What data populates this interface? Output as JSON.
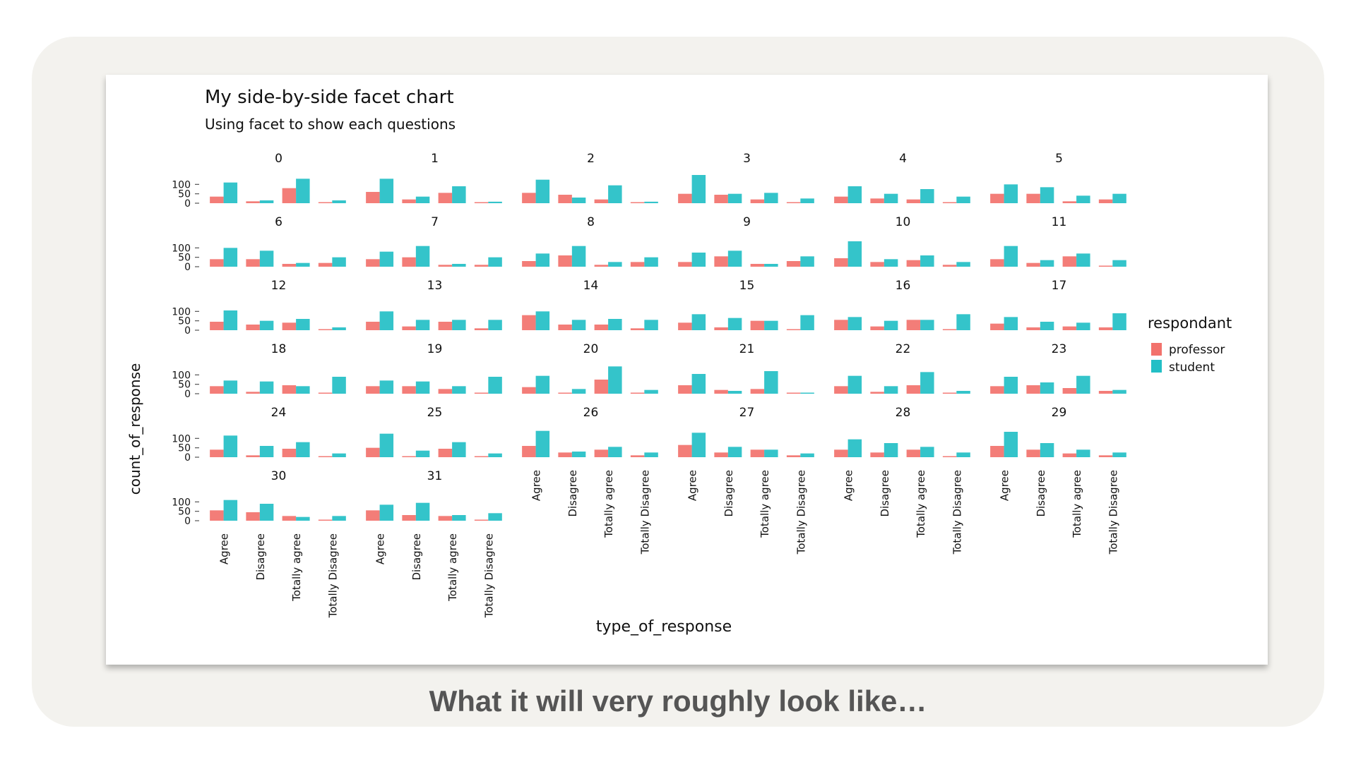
{
  "caption": "What it will very roughly look like…",
  "colors": {
    "professor": "#f2726c",
    "student": "#23bfc6"
  },
  "chart_data": {
    "type": "bar",
    "title": "My side-by-side facet chart",
    "subtitle": "Using facet to show each questions",
    "xlabel": "type_of_response",
    "ylabel": "count_of_response",
    "categories": [
      "Agree",
      "Disagree",
      "Totally agree",
      "Totally Disagree"
    ],
    "yticks": [
      0,
      50,
      100
    ],
    "ylim": [
      0,
      150
    ],
    "facet_columns": 6,
    "legend": {
      "title": "respondant",
      "entries": [
        "professor",
        "student"
      ],
      "position": "right"
    },
    "facets": [
      {
        "label": "0",
        "professor": [
          35,
          10,
          80,
          2
        ],
        "student": [
          110,
          15,
          130,
          15
        ]
      },
      {
        "label": "1",
        "professor": [
          60,
          20,
          55,
          5
        ],
        "student": [
          130,
          35,
          90,
          8
        ]
      },
      {
        "label": "2",
        "professor": [
          55,
          45,
          20,
          3
        ],
        "student": [
          125,
          30,
          95,
          8
        ]
      },
      {
        "label": "3",
        "professor": [
          50,
          45,
          20,
          5
        ],
        "student": [
          150,
          50,
          55,
          25
        ]
      },
      {
        "label": "4",
        "professor": [
          35,
          25,
          20,
          5
        ],
        "student": [
          90,
          50,
          75,
          35
        ]
      },
      {
        "label": "5",
        "professor": [
          50,
          50,
          10,
          20
        ],
        "student": [
          100,
          85,
          40,
          50
        ]
      },
      {
        "label": "6",
        "professor": [
          40,
          40,
          15,
          20
        ],
        "student": [
          100,
          85,
          20,
          50
        ]
      },
      {
        "label": "7",
        "professor": [
          40,
          50,
          10,
          10
        ],
        "student": [
          80,
          110,
          15,
          50
        ]
      },
      {
        "label": "8",
        "professor": [
          30,
          60,
          10,
          25
        ],
        "student": [
          70,
          110,
          25,
          50
        ]
      },
      {
        "label": "9",
        "professor": [
          25,
          55,
          15,
          30
        ],
        "student": [
          75,
          85,
          15,
          55
        ]
      },
      {
        "label": "10",
        "professor": [
          45,
          25,
          35,
          10
        ],
        "student": [
          135,
          40,
          60,
          25
        ]
      },
      {
        "label": "11",
        "professor": [
          40,
          20,
          55,
          5
        ],
        "student": [
          110,
          35,
          70,
          35
        ]
      },
      {
        "label": "12",
        "professor": [
          45,
          30,
          40,
          5
        ],
        "student": [
          105,
          50,
          60,
          15
        ]
      },
      {
        "label": "13",
        "professor": [
          45,
          20,
          45,
          10
        ],
        "student": [
          100,
          55,
          55,
          55
        ]
      },
      {
        "label": "14",
        "professor": [
          80,
          30,
          30,
          10
        ],
        "student": [
          100,
          55,
          60,
          55
        ]
      },
      {
        "label": "15",
        "professor": [
          40,
          15,
          50,
          5
        ],
        "student": [
          85,
          65,
          50,
          80
        ]
      },
      {
        "label": "16",
        "professor": [
          55,
          20,
          55,
          5
        ],
        "student": [
          70,
          50,
          55,
          85
        ]
      },
      {
        "label": "17",
        "professor": [
          35,
          15,
          20,
          15
        ],
        "student": [
          70,
          45,
          40,
          90
        ]
      },
      {
        "label": "18",
        "professor": [
          40,
          10,
          45,
          5
        ],
        "student": [
          70,
          65,
          40,
          90
        ]
      },
      {
        "label": "19",
        "professor": [
          40,
          40,
          25,
          5
        ],
        "student": [
          70,
          65,
          40,
          90
        ]
      },
      {
        "label": "20",
        "professor": [
          35,
          5,
          75,
          3
        ],
        "student": [
          95,
          25,
          145,
          20
        ]
      },
      {
        "label": "21",
        "professor": [
          45,
          20,
          25,
          2
        ],
        "student": [
          105,
          15,
          120,
          3
        ]
      },
      {
        "label": "22",
        "professor": [
          40,
          10,
          45,
          3
        ],
        "student": [
          95,
          40,
          115,
          15
        ]
      },
      {
        "label": "23",
        "professor": [
          40,
          45,
          30,
          15
        ],
        "student": [
          90,
          60,
          95,
          20
        ]
      },
      {
        "label": "24",
        "professor": [
          40,
          10,
          45,
          2
        ],
        "student": [
          115,
          60,
          80,
          20
        ]
      },
      {
        "label": "25",
        "professor": [
          50,
          5,
          45,
          3
        ],
        "student": [
          125,
          35,
          80,
          20
        ]
      },
      {
        "label": "26",
        "professor": [
          60,
          25,
          40,
          10
        ],
        "student": [
          140,
          30,
          55,
          25
        ]
      },
      {
        "label": "27",
        "professor": [
          65,
          25,
          40,
          10
        ],
        "student": [
          130,
          55,
          40,
          20
        ]
      },
      {
        "label": "28",
        "professor": [
          40,
          25,
          40,
          5
        ],
        "student": [
          95,
          75,
          55,
          25
        ]
      },
      {
        "label": "29",
        "professor": [
          60,
          40,
          20,
          10
        ],
        "student": [
          135,
          75,
          40,
          25
        ]
      },
      {
        "label": "30",
        "professor": [
          55,
          45,
          25,
          5
        ],
        "student": [
          110,
          90,
          20,
          25
        ]
      },
      {
        "label": "31",
        "professor": [
          55,
          30,
          25,
          3
        ],
        "student": [
          85,
          95,
          30,
          40
        ]
      }
    ]
  }
}
